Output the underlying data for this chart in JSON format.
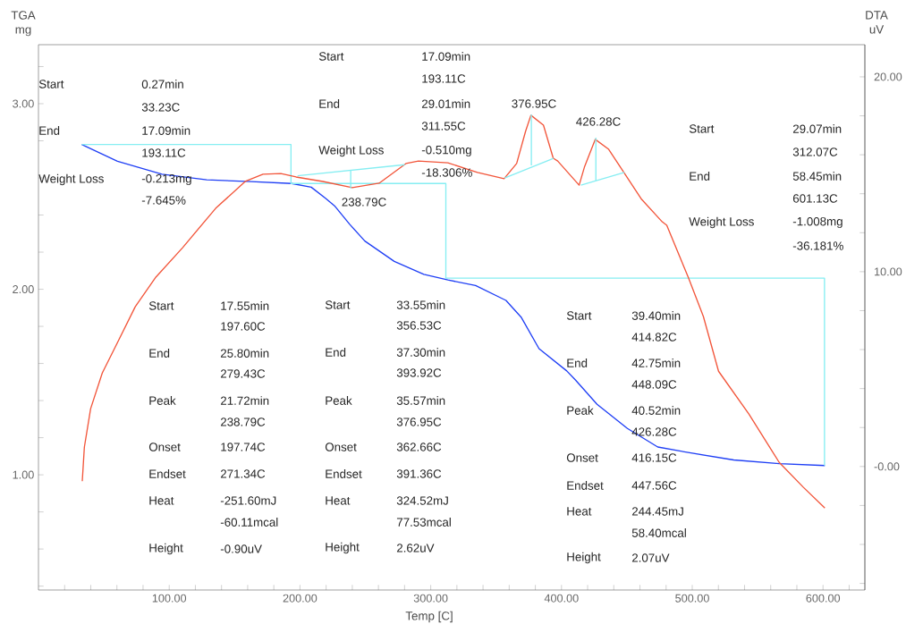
{
  "chart_data": {
    "type": "line",
    "xlabel": "Temp [C]",
    "ylabel": "TGA mg",
    "y2label": "DTA uV",
    "xlim": [
      0,
      632
    ],
    "ylim": [
      0.379,
      3.318
    ],
    "y2lim": [
      -6.34,
      21.65
    ],
    "xticks": [
      {
        "value": 20,
        "label": null
      },
      {
        "value": 40,
        "label": null
      },
      {
        "value": 60,
        "label": null
      },
      {
        "value": 80,
        "label": null
      },
      {
        "value": 100,
        "label": "100.00"
      },
      {
        "value": 120,
        "label": null
      },
      {
        "value": 140,
        "label": null
      },
      {
        "value": 160,
        "label": null
      },
      {
        "value": 180,
        "label": null
      },
      {
        "value": 200,
        "label": "200.00"
      },
      {
        "value": 220,
        "label": null
      },
      {
        "value": 240,
        "label": null
      },
      {
        "value": 260,
        "label": null
      },
      {
        "value": 280,
        "label": null
      },
      {
        "value": 300,
        "label": "300.00"
      },
      {
        "value": 320,
        "label": null
      },
      {
        "value": 340,
        "label": null
      },
      {
        "value": 360,
        "label": null
      },
      {
        "value": 380,
        "label": null
      },
      {
        "value": 400,
        "label": "400.00"
      },
      {
        "value": 420,
        "label": null
      },
      {
        "value": 440,
        "label": null
      },
      {
        "value": 460,
        "label": null
      },
      {
        "value": 480,
        "label": null
      },
      {
        "value": 500,
        "label": "500.00"
      },
      {
        "value": 520,
        "label": null
      },
      {
        "value": 540,
        "label": null
      },
      {
        "value": 560,
        "label": null
      },
      {
        "value": 580,
        "label": null
      },
      {
        "value": 600,
        "label": "600.00"
      },
      {
        "value": 620,
        "label": null
      }
    ],
    "yticks": [
      {
        "value": 0.4,
        "label": null
      },
      {
        "value": 0.6,
        "label": null
      },
      {
        "value": 0.8,
        "label": null
      },
      {
        "value": 1.0,
        "label": "1.00"
      },
      {
        "value": 1.2,
        "label": null
      },
      {
        "value": 1.4,
        "label": null
      },
      {
        "value": 1.6,
        "label": null
      },
      {
        "value": 1.8,
        "label": null
      },
      {
        "value": 2.0,
        "label": "2.00"
      },
      {
        "value": 2.2,
        "label": null
      },
      {
        "value": 2.4,
        "label": null
      },
      {
        "value": 2.6,
        "label": null
      },
      {
        "value": 2.8,
        "label": null
      },
      {
        "value": 3.0,
        "label": "3.00"
      },
      {
        "value": 3.2,
        "label": null
      }
    ],
    "y2ticks": [
      {
        "value": -6,
        "label": null
      },
      {
        "value": -4,
        "label": null
      },
      {
        "value": -2,
        "label": null
      },
      {
        "value": 0,
        "label": "-0.00"
      },
      {
        "value": 2,
        "label": null
      },
      {
        "value": 4,
        "label": null
      },
      {
        "value": 6,
        "label": null
      },
      {
        "value": 8,
        "label": null
      },
      {
        "value": 10,
        "label": "10.00"
      },
      {
        "value": 12,
        "label": null
      },
      {
        "value": 14,
        "label": null
      },
      {
        "value": 16,
        "label": null
      },
      {
        "value": 18,
        "label": null
      },
      {
        "value": 20,
        "label": "20.00"
      }
    ],
    "marker": "none",
    "line_style": "solid",
    "series": [
      {
        "axis": "y",
        "color": "#1f3ff5",
        "x": [
          33.1,
          60.4,
          94.5,
          128.7,
          162.8,
          193.6,
          208.6,
          219.5,
          226.4,
          238.0,
          249.6,
          272.1,
          294.7,
          313.1,
          334.3,
          357.5,
          369.1,
          382.8,
          404.0,
          410.8,
          427.2,
          450.4,
          473.6,
          496.9,
          531.7,
          566.5,
          601.4
        ],
        "values": [
          2.78,
          2.69,
          2.62,
          2.59,
          2.58,
          2.57,
          2.55,
          2.49,
          2.45,
          2.35,
          2.26,
          2.15,
          2.08,
          2.05,
          2.02,
          1.94,
          1.85,
          1.68,
          1.56,
          1.51,
          1.38,
          1.25,
          1.15,
          1.12,
          1.08,
          1.06,
          1.05
        ]
      },
      {
        "axis": "y2",
        "color": "#f2553a",
        "x": [
          33.5,
          35.1,
          39.9,
          48.8,
          60.4,
          74.0,
          89.8,
          110.2,
          135.5,
          158.1,
          171.7,
          185.4,
          197.0,
          217.5,
          240.0,
          260.5,
          281.0,
          290.6,
          313.1,
          335.7,
          356.1,
          365.7,
          372.5,
          376.6,
          386.2,
          393.7,
          397.1,
          413.5,
          417.5,
          425.8,
          436.1,
          447.7,
          461.3,
          477.0,
          480.5,
          496.9,
          508.5,
          520.1,
          543.3,
          566.5,
          585.0,
          601.4
        ],
        "values": [
          -0.75,
          0.99,
          2.97,
          4.8,
          6.36,
          8.2,
          9.72,
          11.23,
          13.25,
          14.63,
          15.0,
          15.04,
          14.86,
          14.63,
          14.31,
          14.54,
          15.55,
          15.68,
          15.59,
          15.09,
          14.77,
          15.55,
          17.2,
          18.03,
          17.52,
          15.82,
          15.68,
          14.44,
          15.36,
          16.79,
          16.28,
          15.09,
          13.71,
          12.56,
          12.38,
          9.72,
          7.7,
          4.89,
          2.69,
          0.21,
          -1.07,
          -2.13
        ]
      },
      {
        "axis": "y",
        "color": "#86eef2",
        "x": [
          33.23,
          193.11,
          193.11,
          311.55,
          311.55,
          601.13,
          601.13
        ],
        "values": [
          2.78,
          2.78,
          2.57,
          2.57,
          2.06,
          2.06,
          1.05
        ]
      },
      {
        "axis": "y2",
        "color": "#86eef2",
        "x": [
          198.2,
          280.1
        ],
        "values": [
          14.92,
          15.49
        ]
      },
      {
        "axis": "y2",
        "color": "#86eef2",
        "x": [
          238.79,
          238.79
        ],
        "values": [
          15.19,
          14.27
        ]
      },
      {
        "axis": "y2",
        "color": "#86eef2",
        "x": [
          356.53,
          393.92
        ],
        "values": [
          14.81,
          15.82
        ]
      },
      {
        "axis": "y2",
        "color": "#86eef2",
        "x": [
          376.95,
          376.95
        ],
        "values": [
          18.07,
          15.45
        ]
      },
      {
        "axis": "y2",
        "color": "#86eef2",
        "x": [
          414.82,
          448.09
        ],
        "values": [
          14.44,
          15.09
        ]
      },
      {
        "axis": "y2",
        "color": "#86eef2",
        "x": [
          426.28,
          426.28
        ],
        "values": [
          16.88,
          14.67
        ]
      }
    ],
    "annotations": [
      "Start",
      "0.27min",
      "33.23C",
      "End",
      "17.09min",
      "193.11C",
      "Weight Loss",
      "-0.213mg",
      "-7.645%",
      "Start",
      "17.09min",
      "193.11C",
      "End",
      "29.01min",
      "311.55C",
      "Weight Loss",
      "-0.510mg",
      "-18.306%",
      "Start",
      "29.07min",
      "312.07C",
      "End",
      "58.45min",
      "601.13C",
      "Weight Loss",
      "-1.008mg",
      "-36.181%",
      "238.79C",
      "376.95C",
      "426.28C",
      "Start",
      "17.55min",
      "197.60C",
      "End",
      "25.80min",
      "279.43C",
      "Peak",
      "21.72min",
      "238.79C",
      "Onset",
      "197.74C",
      "Endset",
      "271.34C",
      "Heat",
      "-251.60mJ",
      "-60.11mcal",
      "Height",
      "-0.90uV",
      "Start",
      "33.55min",
      "356.53C",
      "End",
      "37.30min",
      "393.92C",
      "Peak",
      "35.57min",
      "376.95C",
      "Onset",
      "362.66C",
      "Endset",
      "391.36C",
      "Heat",
      "324.52mJ",
      "77.53mcal",
      "Height",
      "2.62uV",
      "Start",
      "39.40min",
      "414.82C",
      "End",
      "42.75min",
      "448.09C",
      "Peak",
      "40.52min",
      "426.28C",
      "Onset",
      "416.15C",
      "Endset",
      "447.56C",
      "Heat",
      "244.45mJ",
      "58.40mcal",
      "Height",
      "2.07uV"
    ]
  }
}
